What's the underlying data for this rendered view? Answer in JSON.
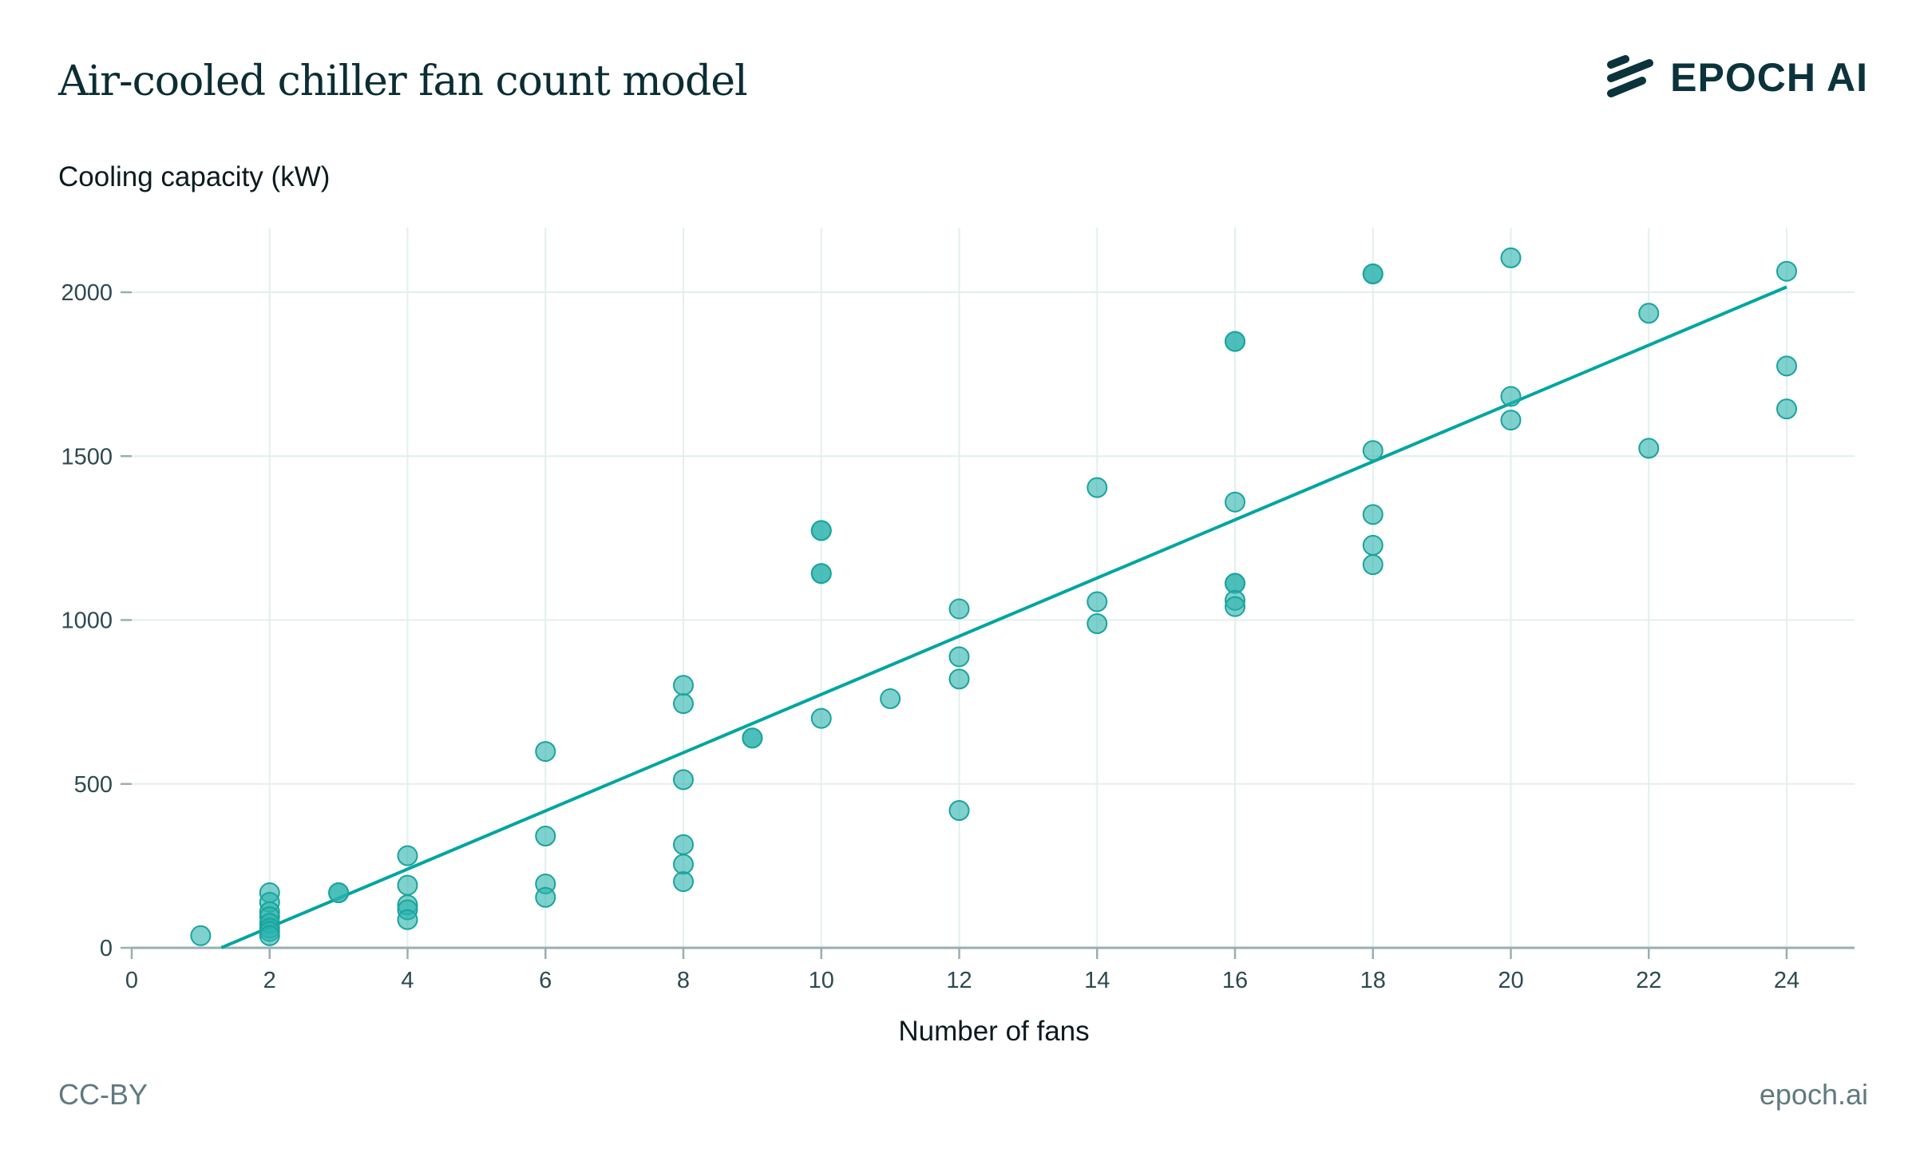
{
  "chart_data": {
    "type": "scatter",
    "title": "Air-cooled chiller fan count model",
    "xlabel": "Number of fans",
    "ylabel": "Cooling capacity (kW)",
    "xlim": [
      0,
      25
    ],
    "ylim": [
      0,
      2200
    ],
    "xticks": [
      0,
      2,
      4,
      6,
      8,
      10,
      12,
      14,
      16,
      18,
      20,
      22,
      24
    ],
    "yticks": [
      0,
      500,
      1000,
      1500,
      2000
    ],
    "grid": true,
    "points": [
      [
        1,
        37
      ],
      [
        2,
        168
      ],
      [
        2,
        139
      ],
      [
        2,
        110
      ],
      [
        2,
        95
      ],
      [
        2,
        75
      ],
      [
        2,
        60
      ],
      [
        2,
        50
      ],
      [
        2,
        37
      ],
      [
        3,
        168
      ],
      [
        3,
        168
      ],
      [
        4,
        281
      ],
      [
        4,
        191
      ],
      [
        4,
        131
      ],
      [
        4,
        116
      ],
      [
        4,
        86
      ],
      [
        6,
        599
      ],
      [
        6,
        341
      ],
      [
        6,
        195
      ],
      [
        6,
        154
      ],
      [
        8,
        801
      ],
      [
        8,
        745
      ],
      [
        8,
        513
      ],
      [
        8,
        315
      ],
      [
        8,
        255
      ],
      [
        8,
        202
      ],
      [
        9,
        640
      ],
      [
        9,
        640
      ],
      [
        10,
        1273
      ],
      [
        10,
        1273
      ],
      [
        10,
        1142
      ],
      [
        10,
        1142
      ],
      [
        10,
        700
      ],
      [
        11,
        760
      ],
      [
        12,
        1034
      ],
      [
        12,
        888
      ],
      [
        12,
        820
      ],
      [
        12,
        419
      ],
      [
        14,
        1404
      ],
      [
        14,
        1056
      ],
      [
        14,
        989
      ],
      [
        16,
        1850
      ],
      [
        16,
        1850
      ],
      [
        16,
        1360
      ],
      [
        16,
        1112
      ],
      [
        16,
        1112
      ],
      [
        16,
        1060
      ],
      [
        16,
        1041
      ],
      [
        18,
        2056
      ],
      [
        18,
        2056
      ],
      [
        18,
        1517
      ],
      [
        18,
        1322
      ],
      [
        18,
        1228
      ],
      [
        18,
        1169
      ],
      [
        20,
        2105
      ],
      [
        20,
        1682
      ],
      [
        20,
        1610
      ],
      [
        22,
        1936
      ],
      [
        22,
        1524
      ],
      [
        24,
        2064
      ],
      [
        24,
        1775
      ],
      [
        24,
        1644
      ]
    ],
    "fit_line": {
      "slope": 88.8,
      "intercept": -115,
      "x_range": [
        1.3,
        24
      ]
    },
    "colors": {
      "point": "#2ab3ad",
      "line": "#00a5a0",
      "grid": "#e3efee",
      "axis": "#9aaeb2"
    }
  },
  "header": {
    "title": "Air-cooled chiller fan count model",
    "logo_text": "EPOCH AI"
  },
  "footer": {
    "license": "CC-BY",
    "site": "epoch.ai"
  }
}
